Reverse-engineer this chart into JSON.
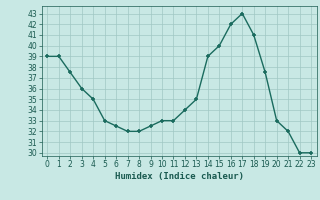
{
  "x": [
    0,
    1,
    2,
    3,
    4,
    5,
    6,
    7,
    8,
    9,
    10,
    11,
    12,
    13,
    14,
    15,
    16,
    17,
    18,
    19,
    20,
    21,
    22,
    23
  ],
  "y": [
    39,
    39,
    37.5,
    36,
    35,
    33,
    32.5,
    32,
    32,
    32.5,
    33,
    33,
    34,
    35,
    39,
    40,
    42,
    43,
    41,
    37.5,
    33,
    32,
    30,
    30
  ],
  "xlabel": "Humidex (Indice chaleur)",
  "xlim_left": -0.5,
  "xlim_right": 23.5,
  "ylim_bottom": 29.7,
  "ylim_top": 43.7,
  "yticks": [
    30,
    31,
    32,
    33,
    34,
    35,
    36,
    37,
    38,
    39,
    40,
    41,
    42,
    43
  ],
  "xticks": [
    0,
    1,
    2,
    3,
    4,
    5,
    6,
    7,
    8,
    9,
    10,
    11,
    12,
    13,
    14,
    15,
    16,
    17,
    18,
    19,
    20,
    21,
    22,
    23
  ],
  "line_color": "#1a6b5e",
  "marker": "+",
  "bg_color": "#c8e8e4",
  "grid_color": "#a0c8c4",
  "font_color": "#1a5a50",
  "label_fontsize": 6.5,
  "tick_fontsize": 5.5
}
